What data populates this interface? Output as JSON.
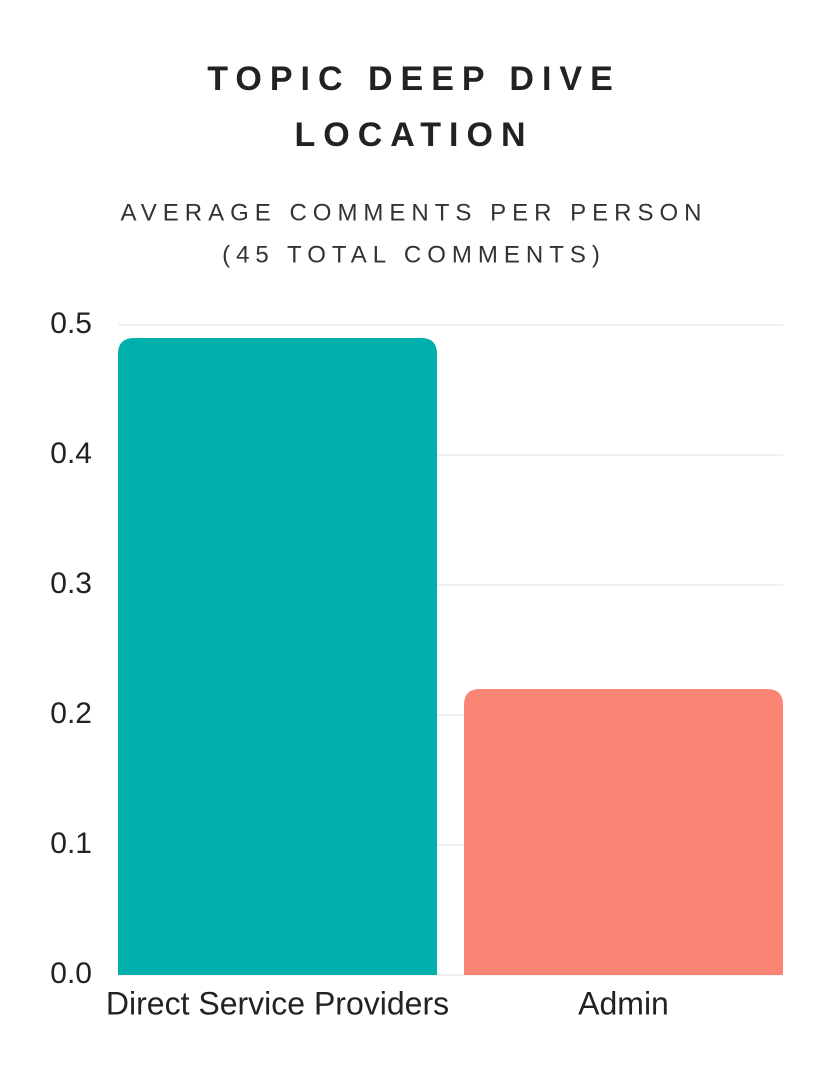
{
  "chart_data": {
    "type": "bar",
    "title": [
      "TOPIC DEEP DIVE",
      "LOCATION"
    ],
    "subtitle": [
      "AVERAGE COMMENTS PER PERSON",
      "(45 TOTAL COMMENTS)"
    ],
    "categories": [
      "Direct Service Providers",
      "Admin"
    ],
    "values": [
      0.49,
      0.22
    ],
    "colors": [
      "#00b0ad",
      "#fa8575"
    ],
    "ylim": [
      0,
      0.5
    ],
    "yticks": [
      {
        "value": 0,
        "label": "0.0"
      },
      0.1,
      0.2,
      0.3,
      0.4,
      0.5
    ],
    "grid": true
  }
}
